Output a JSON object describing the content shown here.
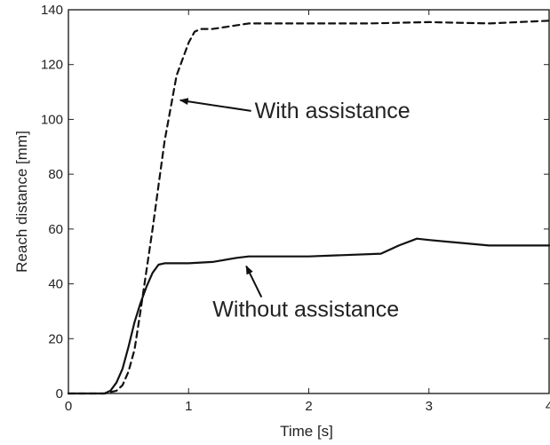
{
  "chart_data": {
    "type": "line",
    "title": "",
    "xlabel": "Time [s]",
    "ylabel": "Reach distance [mm]",
    "xlim": [
      0,
      4
    ],
    "ylim": [
      0,
      140
    ],
    "xticks": [
      0,
      1,
      2,
      3,
      4
    ],
    "yticks": [
      0,
      20,
      40,
      60,
      80,
      100,
      120,
      140
    ],
    "xtick_labels": [
      "0",
      "1",
      "2",
      "3",
      "4"
    ],
    "ytick_labels": [
      "0",
      "20",
      "40",
      "60",
      "80",
      "100",
      "120",
      "140"
    ],
    "grid": false,
    "legend": "none",
    "series": [
      {
        "name": "With assistance",
        "style": "dashed",
        "color": "#111111",
        "x": [
          0,
          0.3,
          0.4,
          0.45,
          0.5,
          0.55,
          0.6,
          0.7,
          0.8,
          0.9,
          1.0,
          1.05,
          1.1,
          1.2,
          1.5,
          2.0,
          2.5,
          3.0,
          3.5,
          4.0
        ],
        "y": [
          0,
          0,
          1,
          3,
          8,
          16,
          30,
          60,
          92,
          116,
          128,
          132,
          133,
          133,
          135,
          135,
          135,
          135.5,
          135,
          136
        ]
      },
      {
        "name": "Without assistance",
        "style": "solid",
        "color": "#111111",
        "x": [
          0,
          0.3,
          0.35,
          0.4,
          0.45,
          0.5,
          0.55,
          0.6,
          0.65,
          0.7,
          0.75,
          0.8,
          1.0,
          1.2,
          1.4,
          1.5,
          2.0,
          2.6,
          2.75,
          2.9,
          3.0,
          3.5,
          4.0
        ],
        "y": [
          0,
          0,
          1,
          4,
          9,
          17,
          26,
          33,
          39,
          44,
          47,
          47.5,
          47.5,
          48,
          49.5,
          50,
          50,
          51,
          54,
          56.5,
          56,
          54,
          54
        ]
      }
    ],
    "annotations": [
      {
        "text": "With assistance",
        "text_at": [
          1.55,
          100.5
        ],
        "arrow_to": [
          0.93,
          107
        ]
      },
      {
        "text": "Without assistance",
        "text_at": [
          1.2,
          28
        ],
        "arrow_to": [
          1.48,
          46.5
        ]
      }
    ]
  }
}
